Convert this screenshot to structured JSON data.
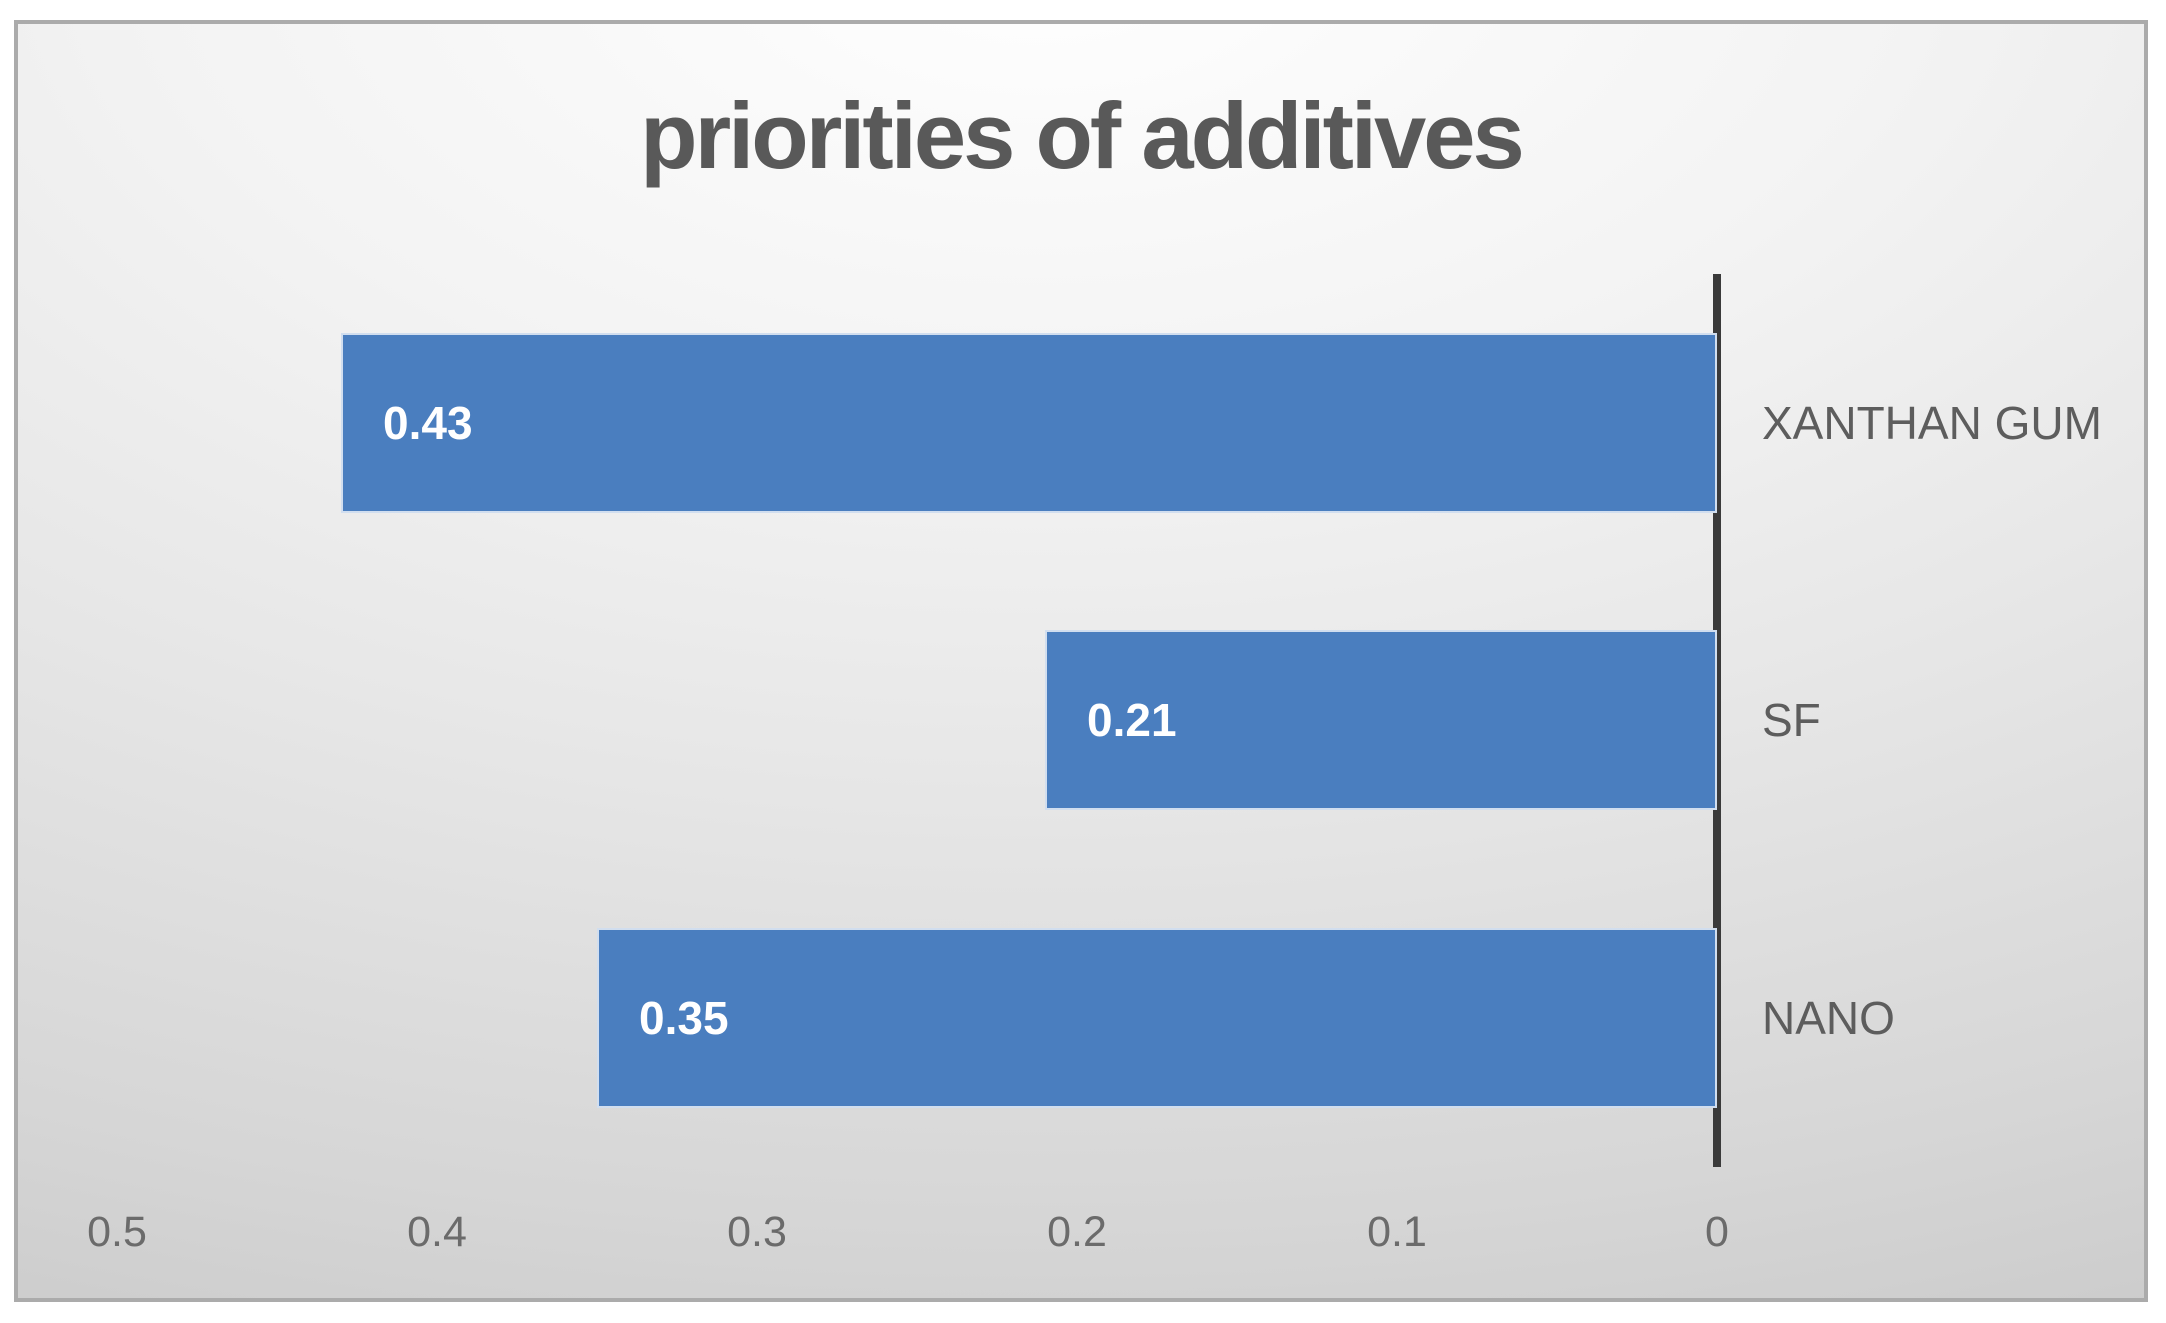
{
  "title": "priorities of additives",
  "chart_data": {
    "type": "bar",
    "orientation": "horizontal",
    "title": "priorities of additives",
    "categories": [
      "XANTHAN GUM",
      "SF",
      "NANO"
    ],
    "values": [
      0.43,
      0.21,
      0.35
    ],
    "value_labels": [
      "0.43",
      "0.21",
      "0.35"
    ],
    "value_label_position": "inside-end",
    "x_ticks": [
      "0.5",
      "0.4",
      "0.3",
      "0.2",
      "0.1",
      "0"
    ],
    "xlim": [
      0.5,
      0
    ],
    "axis_reversed": true,
    "xlabel": "",
    "ylabel": "",
    "grid": false,
    "legend": "none",
    "colors": {
      "bar": "#4a7ebf",
      "bar_border": "rgba(255,255,255,0.75)",
      "value_label": "#ffffff",
      "category_label": "#5d5d5d",
      "tick_label": "#6b6b6b",
      "axis_line": "#3a3a3a",
      "title": "#595959",
      "frame_border": "#ababab"
    }
  }
}
